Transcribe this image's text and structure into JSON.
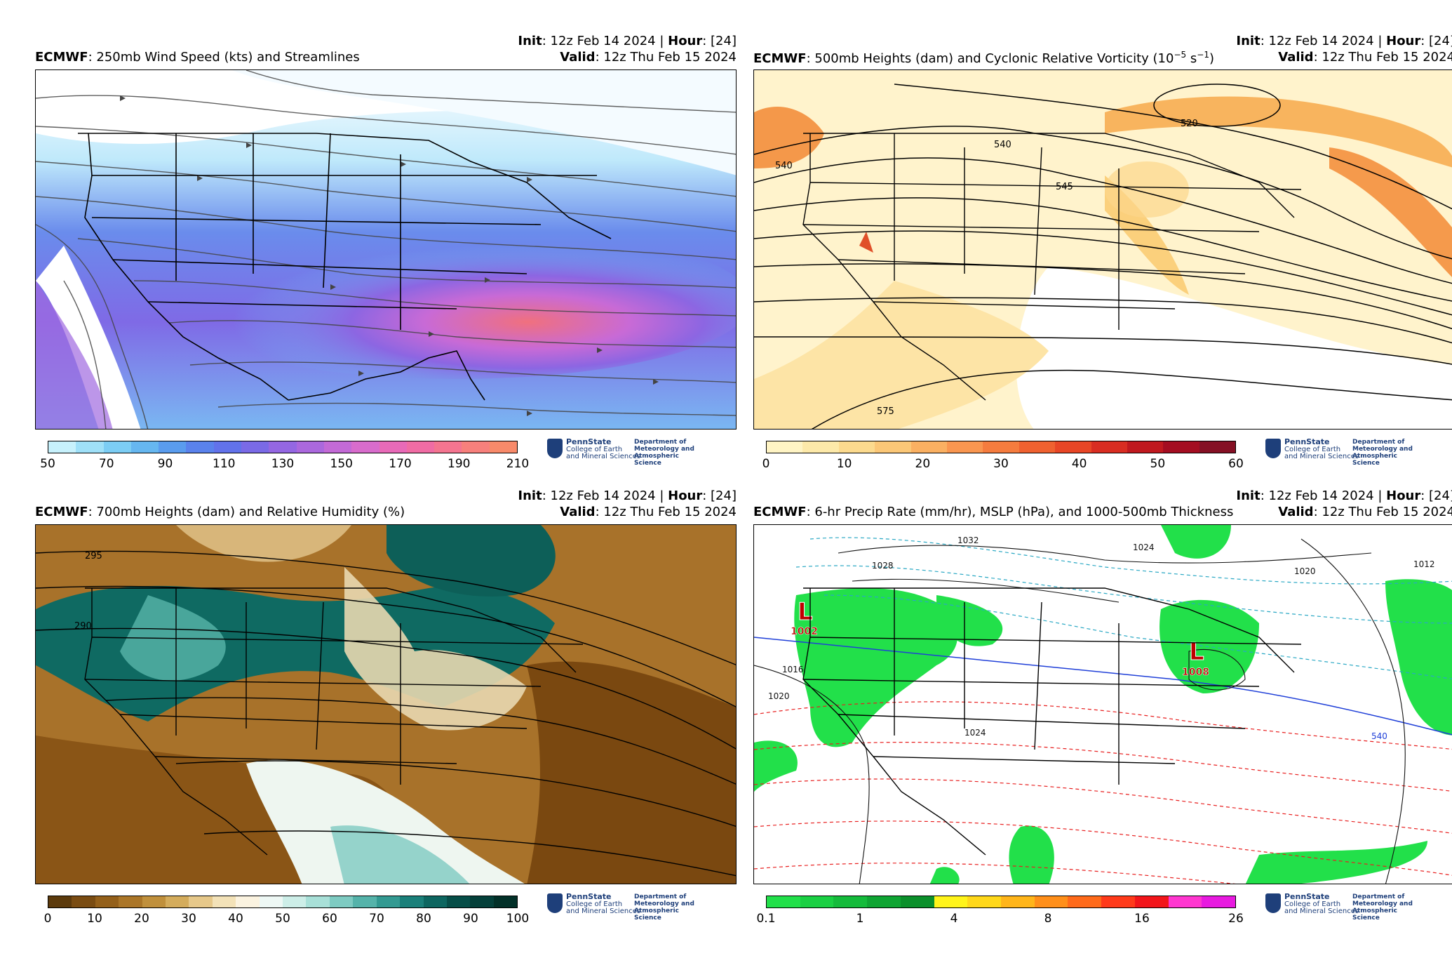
{
  "panels": [
    {
      "model": "ECMWF",
      "title_text": ": 250mb Wind Speed (kts) and Streamlines",
      "init_label": "Init",
      "init_value": ": 12z Feb 14 2024 | ",
      "hour_label": "Hour",
      "hour_value": ": [24]",
      "valid_label": "Valid",
      "valid_value": ": 12z Thu Feb 15 2024",
      "colorbar_ticks": [
        "50",
        "70",
        "90",
        "110",
        "130",
        "150",
        "170",
        "190",
        "210"
      ],
      "colorbar_colors": [
        "#c7f1fc",
        "#9fe0f8",
        "#7ccdf4",
        "#66b7f0",
        "#5a9cee",
        "#5a82ec",
        "#6272ea",
        "#7a6ae6",
        "#9467e2",
        "#ab68dd",
        "#c36ad6",
        "#d86ccc",
        "#e86ab8",
        "#f06ca4",
        "#f47590",
        "#f7807c",
        "#f88a6a"
      ],
      "contour_labels": []
    },
    {
      "model": "ECMWF",
      "title_text": ": 500mb Heights (dam) and Cyclonic Relative Vorticity (10",
      "title_sup": "−5",
      "title_suffix": " s",
      "title_sup2": "−1",
      "title_close": ")",
      "init_label": "Init",
      "init_value": ": 12z Feb 14 2024 | ",
      "hour_label": "Hour",
      "hour_value": ": [24]",
      "valid_label": "Valid",
      "valid_value": ": 12z Thu Feb 15 2024",
      "colorbar_ticks": [
        "0",
        "10",
        "20",
        "30",
        "40",
        "50",
        "60"
      ],
      "colorbar_colors": [
        "#fff4c4",
        "#fde9a9",
        "#fcda8e",
        "#fbc777",
        "#fab062",
        "#f99650",
        "#f57c3e",
        "#ef6130",
        "#e84626",
        "#d92d22",
        "#c0191f",
        "#a40d21",
        "#851024"
      ],
      "contour_labels": [
        "520",
        "540",
        "545",
        "540",
        "575"
      ]
    },
    {
      "model": "ECMWF",
      "title_text": ": 700mb Heights (dam) and Relative Humidity (%)",
      "init_label": "Init",
      "init_value": ": 12z Feb 14 2024 | ",
      "hour_label": "Hour",
      "hour_value": ": [24]",
      "valid_label": "Valid",
      "valid_value": ": 12z Thu Feb 15 2024",
      "colorbar_ticks": [
        "0",
        "10",
        "20",
        "30",
        "40",
        "50",
        "60",
        "70",
        "80",
        "90",
        "100"
      ],
      "colorbar_colors": [
        "#5c3a0c",
        "#7a4c12",
        "#94601a",
        "#ab7628",
        "#c0903c",
        "#d4ac5c",
        "#e6c88a",
        "#f3e2b8",
        "#fbf3e0",
        "#eef8f5",
        "#cdeee8",
        "#a8e0d8",
        "#7ecbc2",
        "#55b3aa",
        "#339a92",
        "#1a807a",
        "#0d6660",
        "#064e48",
        "#04403a",
        "#023028"
      ],
      "contour_labels": [
        "295",
        "290"
      ]
    },
    {
      "model": "ECMWF",
      "title_text": ": 6-hr Precip Rate (mm/hr), MSLP (hPa), and 1000-500mb Thickness",
      "init_label": "Init",
      "init_value": ": 12z Feb 14 2024 | ",
      "hour_label": "Hour",
      "hour_value": ": [24]",
      "valid_label": "Valid",
      "valid_value": ": 12z Thu Feb 15 2024",
      "colorbar_ticks": [
        "0.1",
        "1",
        "4",
        "8",
        "16",
        "26"
      ],
      "colorbar_colors": [
        "#22e04a",
        "#1ad043",
        "#14bb3b",
        "#0fa533",
        "#0b902b",
        "#fff41a",
        "#ffd81a",
        "#ffb51a",
        "#ff8f1a",
        "#ff6a1a",
        "#ff3a1a",
        "#f2151a",
        "#ff36d0",
        "#e81ae0"
      ],
      "lows": [
        {
          "symbol": "L",
          "value": "1002"
        },
        {
          "symbol": "L",
          "value": "1008"
        }
      ],
      "contour_labels": [
        "1032",
        "1028",
        "1024",
        "1020",
        "1016",
        "1012",
        "1020",
        "540",
        "1024"
      ]
    }
  ],
  "logo": {
    "name": "PennState",
    "line1": "College of Earth",
    "line2": "and Mineral Sciences",
    "dept": "Department of\nMeteorology and\nAtmospheric Science"
  }
}
